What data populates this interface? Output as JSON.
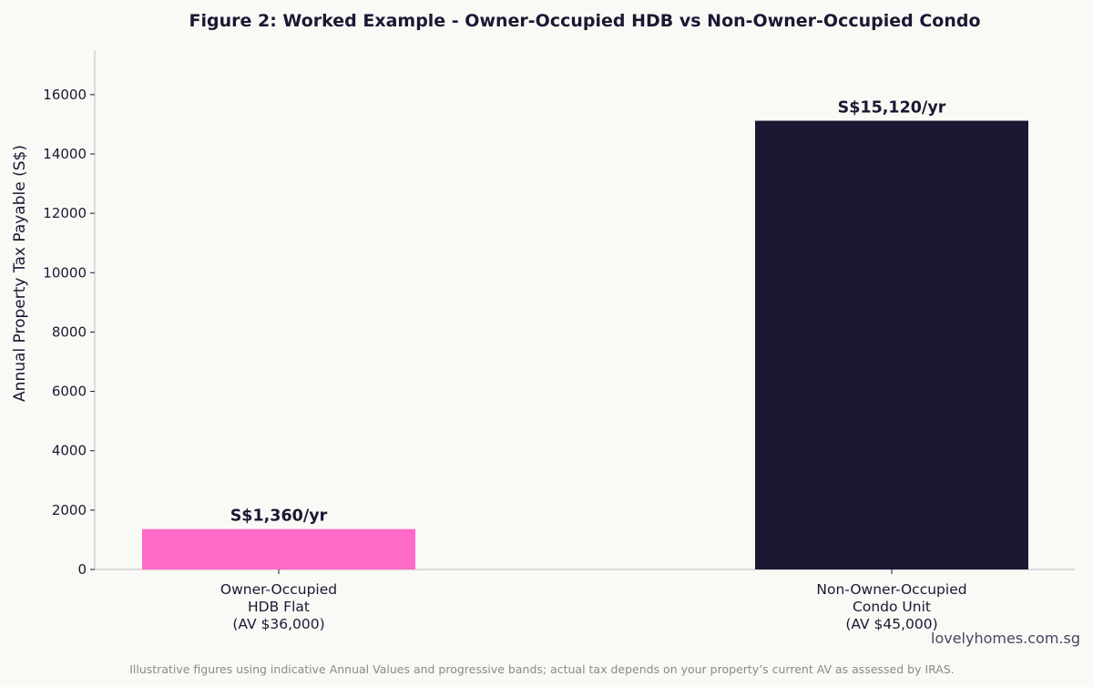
{
  "chart_data": {
    "type": "bar",
    "title": "Figure 2: Worked Example - Owner-Occupied HDB vs Non-Owner-Occupied Condo",
    "ylabel": "Annual Property Tax Payable (S$)",
    "xlabel": "",
    "ylim": [
      0,
      17500
    ],
    "yticks": [
      0,
      2000,
      4000,
      6000,
      8000,
      10000,
      12000,
      14000,
      16000
    ],
    "grid": false,
    "categories": [
      [
        "Owner-Occupied",
        "HDB Flat",
        "(AV $36,000)"
      ],
      [
        "Non-Owner-Occupied",
        "Condo Unit",
        "(AV $45,000)"
      ]
    ],
    "values": [
      1360,
      15120
    ],
    "value_labels": [
      "S$1,360/yr",
      "S$15,120/yr"
    ],
    "colors": [
      "#ff69c8",
      "#1c1833"
    ]
  },
  "watermark": "lovelyhomes.com.sg",
  "footnote": "Illustrative figures using indicative Annual Values and progressive bands; actual tax depends on your property’s current AV as assessed by IRAS."
}
